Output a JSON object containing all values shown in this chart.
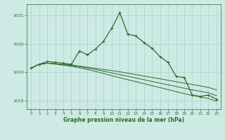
{
  "title": "Graphe pression niveau de la mer (hPa)",
  "background_color": "#cdeae4",
  "grid_color": "#a8d5cc",
  "line_color": "#2d6b2d",
  "xlim": [
    -0.5,
    23.5
  ],
  "ylim": [
    1017.7,
    1021.4
  ],
  "yticks": [
    1018,
    1019,
    1020,
    1021
  ],
  "xticks": [
    0,
    1,
    2,
    3,
    4,
    5,
    6,
    7,
    8,
    9,
    10,
    11,
    12,
    13,
    14,
    15,
    16,
    17,
    18,
    19,
    20,
    21,
    22,
    23
  ],
  "lines": [
    {
      "x": [
        0,
        1,
        2,
        3,
        4,
        5,
        6,
        7,
        8,
        9,
        10,
        11,
        12,
        13,
        14,
        15,
        16,
        17,
        18,
        19,
        20,
        21,
        22,
        23
      ],
      "y": [
        1019.15,
        1019.28,
        1019.32,
        1019.3,
        1019.28,
        1019.26,
        1019.22,
        1019.18,
        1019.14,
        1019.1,
        1019.06,
        1019.02,
        1018.97,
        1018.92,
        1018.87,
        1018.82,
        1018.77,
        1018.72,
        1018.67,
        1018.62,
        1018.57,
        1018.52,
        1018.47,
        1018.38
      ],
      "marker": null,
      "linewidth": 0.7
    },
    {
      "x": [
        0,
        1,
        2,
        3,
        4,
        5,
        6,
        7,
        8,
        9,
        10,
        11,
        12,
        13,
        14,
        15,
        16,
        17,
        18,
        19,
        20,
        21,
        22,
        23
      ],
      "y": [
        1019.15,
        1019.28,
        1019.32,
        1019.3,
        1019.27,
        1019.24,
        1019.2,
        1019.15,
        1019.1,
        1019.04,
        1018.98,
        1018.92,
        1018.86,
        1018.8,
        1018.74,
        1018.68,
        1018.62,
        1018.56,
        1018.5,
        1018.44,
        1018.38,
        1018.33,
        1018.28,
        1018.18
      ],
      "marker": null,
      "linewidth": 0.7
    },
    {
      "x": [
        0,
        1,
        2,
        3,
        4,
        5,
        6,
        7,
        8,
        9,
        10,
        11,
        12,
        13,
        14,
        15,
        16,
        17,
        18,
        19,
        20,
        21,
        22,
        23
      ],
      "y": [
        1019.15,
        1019.28,
        1019.32,
        1019.29,
        1019.25,
        1019.21,
        1019.16,
        1019.1,
        1019.03,
        1018.96,
        1018.88,
        1018.81,
        1018.74,
        1018.67,
        1018.6,
        1018.53,
        1018.46,
        1018.39,
        1018.32,
        1018.25,
        1018.19,
        1018.13,
        1018.08,
        1017.98
      ],
      "marker": null,
      "linewidth": 0.7
    },
    {
      "x": [
        0,
        1,
        2,
        3,
        4,
        5,
        6,
        7,
        8,
        9,
        10,
        11,
        12,
        13,
        14,
        15,
        16,
        17,
        18,
        19,
        20,
        21,
        22,
        23
      ],
      "y": [
        1019.15,
        1019.28,
        1019.38,
        1019.35,
        1019.32,
        1019.28,
        1019.75,
        1019.62,
        1019.82,
        1020.1,
        1020.55,
        1021.1,
        1020.35,
        1020.28,
        1020.05,
        1019.85,
        1019.55,
        1019.35,
        1018.85,
        1018.82,
        1018.2,
        1018.15,
        1018.2,
        1018.05
      ],
      "marker": "+",
      "markersize": 3.5,
      "linewidth": 0.9
    }
  ]
}
